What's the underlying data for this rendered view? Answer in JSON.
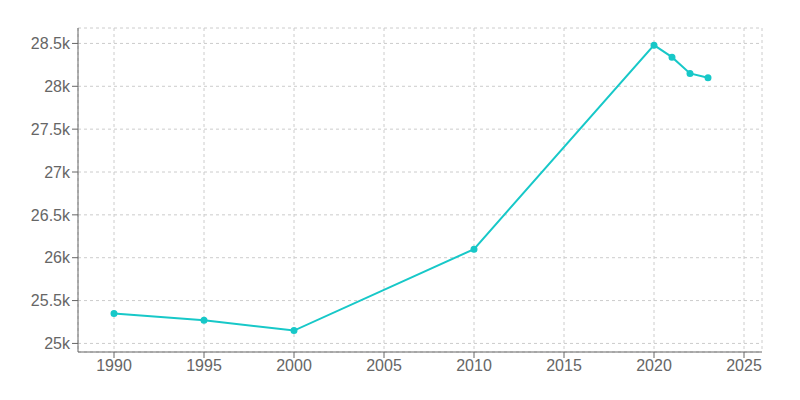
{
  "chart_data": {
    "type": "line",
    "x": [
      1990,
      1995,
      2000,
      2010,
      2020,
      2021,
      2022,
      2023
    ],
    "values": [
      25350,
      25270,
      25150,
      26100,
      28480,
      28340,
      28150,
      28100
    ],
    "color": "#17c8c8",
    "marker": "circle",
    "xlim": [
      1988,
      2026
    ],
    "xticks": [
      1990,
      1995,
      2000,
      2005,
      2010,
      2015,
      2020,
      2025
    ],
    "ylim": [
      24900,
      28680
    ],
    "yticks": [
      {
        "value": 25000,
        "label": "25k"
      },
      {
        "value": 25500,
        "label": "25.5k"
      },
      {
        "value": 26000,
        "label": "26k"
      },
      {
        "value": 26500,
        "label": "26.5k"
      },
      {
        "value": 27000,
        "label": "27k"
      },
      {
        "value": 27500,
        "label": "27.5k"
      },
      {
        "value": 28000,
        "label": "28k"
      },
      {
        "value": 28500,
        "label": "28.5k"
      }
    ],
    "grid": true
  }
}
